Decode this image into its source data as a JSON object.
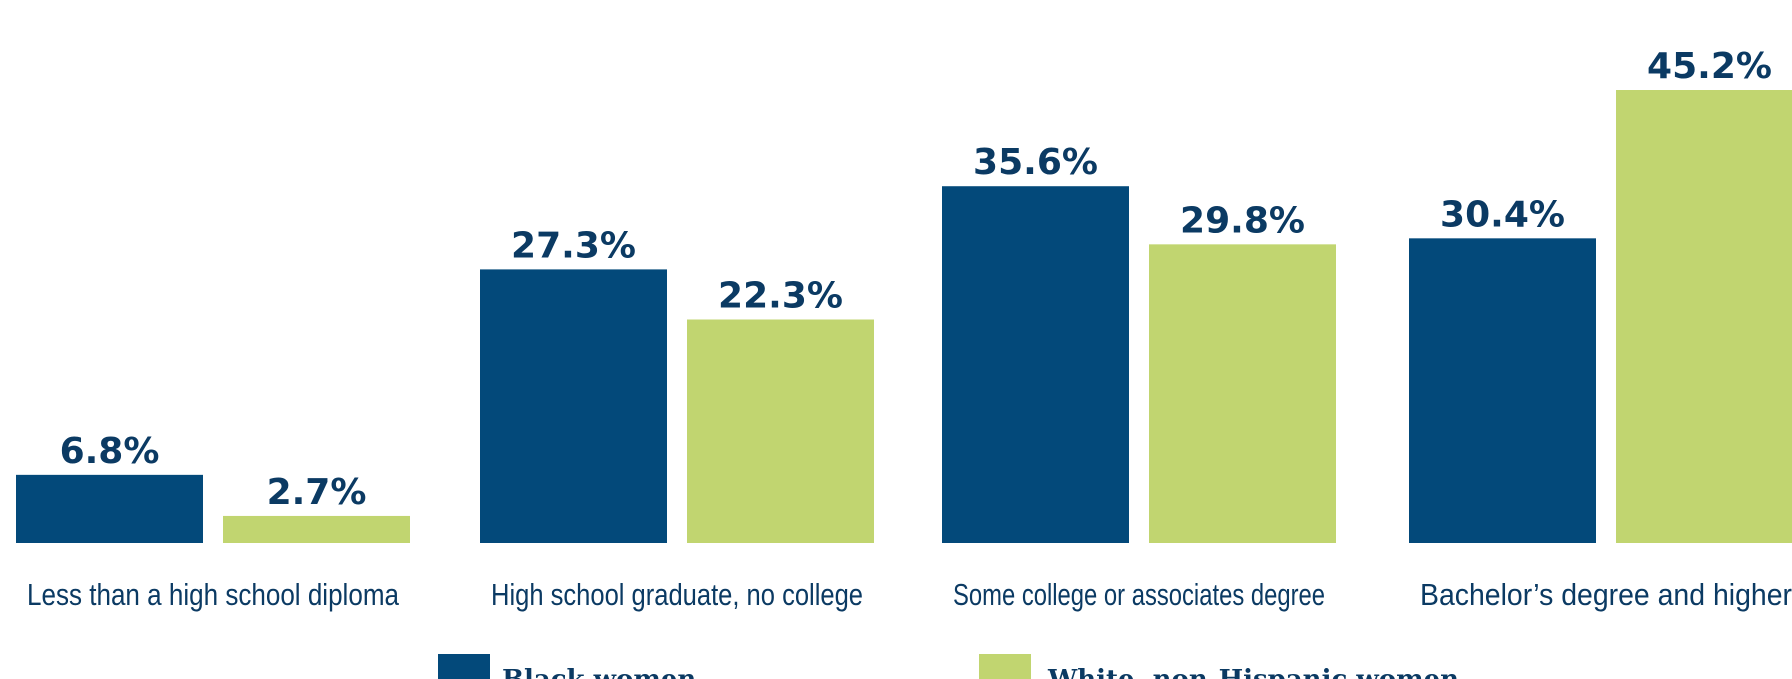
{
  "chart_data": {
    "type": "bar",
    "categories": [
      "Less than a high school diploma",
      "High school graduate, no college",
      "Some college or associates degree",
      "Bachelor’s degree and higher"
    ],
    "series": [
      {
        "name": "Black women",
        "color": "#03497a",
        "values": [
          6.8,
          27.3,
          35.6,
          30.4
        ],
        "value_labels": [
          "6.8%",
          "27.3%",
          "35.6%",
          "30.4%"
        ]
      },
      {
        "name": "White, non-Hispanic women",
        "color": "#c1d570",
        "values": [
          2.7,
          22.3,
          29.8,
          45.2
        ],
        "value_labels": [
          "2.7%",
          "22.3%",
          "29.8%",
          "45.2%"
        ]
      }
    ],
    "value_label_color": "#0b3a63",
    "category_label_color": "#0b3a63",
    "ylim": [
      0,
      45.2
    ],
    "grid": false,
    "legend": "bottom"
  }
}
